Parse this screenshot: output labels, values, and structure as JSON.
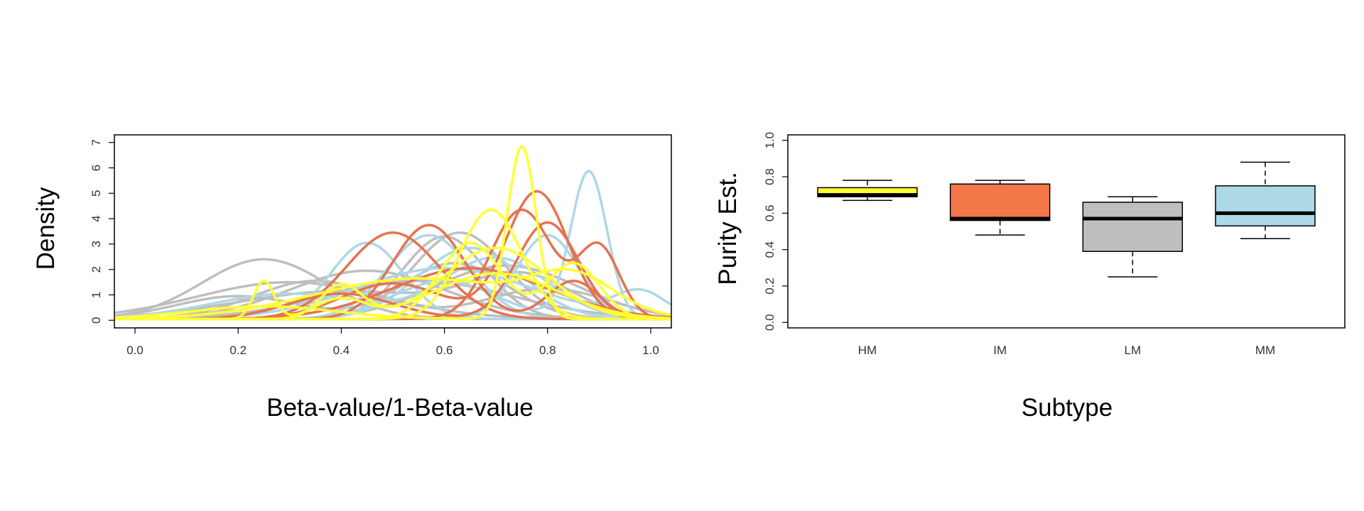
{
  "chart_data": [
    {
      "type": "line",
      "title": "",
      "xlabel": "Beta-value/1-Beta-value",
      "ylabel": "Density",
      "xlim": [
        -0.04,
        1.04
      ],
      "ylim": [
        -0.3,
        7.3
      ],
      "xticks": [
        "0.0",
        "0.2",
        "0.4",
        "0.6",
        "0.8",
        "1.0"
      ],
      "yticks": [
        "0",
        "1",
        "2",
        "3",
        "4",
        "5",
        "6",
        "7"
      ],
      "grid": false,
      "legend": "none",
      "colors": {
        "HM": "#ffff33",
        "IM": "#e5734f",
        "LM": "#bebebe",
        "MM": "#add8e6"
      },
      "series": [
        {
          "group": "LM",
          "peaks": [
            [
              0.25,
              2.35,
              0.12
            ]
          ],
          "base": 0.05
        },
        {
          "group": "LM",
          "peaks": [
            [
              0.3,
              1.45,
              0.18
            ]
          ],
          "base": 0.05
        },
        {
          "group": "LM",
          "peaks": [
            [
              0.2,
              0.9,
              0.12
            ],
            [
              0.62,
              2.2,
              0.1
            ]
          ],
          "base": 0.05
        },
        {
          "group": "LM",
          "peaks": [
            [
              0.6,
              3.25,
              0.08
            ]
          ],
          "base": 0.05
        },
        {
          "group": "LM",
          "peaks": [
            [
              0.45,
              1.9,
              0.15
            ]
          ],
          "base": 0.05
        },
        {
          "group": "LM",
          "peaks": [
            [
              0.4,
              1.1,
              0.2
            ],
            [
              0.75,
              1.6,
              0.1
            ]
          ],
          "base": 0.05
        },
        {
          "group": "LM",
          "peaks": [
            [
              0.63,
              3.4,
              0.09
            ]
          ],
          "base": 0.05
        },
        {
          "group": "LM",
          "peaks": [
            [
              0.55,
              1.5,
              0.18
            ]
          ],
          "base": 0.05
        },
        {
          "group": "LM",
          "peaks": [
            [
              0.72,
              2.1,
              0.14
            ]
          ],
          "base": 0.05
        },
        {
          "group": "LM",
          "peaks": [
            [
              0.35,
              1.5,
              0.12
            ],
            [
              0.8,
              1.2,
              0.12
            ]
          ],
          "base": 0.05
        },
        {
          "group": "MM",
          "peaks": [
            [
              0.88,
              5.8,
              0.035
            ],
            [
              0.6,
              1.5,
              0.1
            ]
          ],
          "base": 0.05
        },
        {
          "group": "MM",
          "peaks": [
            [
              0.45,
              3.0,
              0.07
            ]
          ],
          "base": 0.05
        },
        {
          "group": "MM",
          "peaks": [
            [
              0.57,
              3.3,
              0.08
            ]
          ],
          "base": 0.05
        },
        {
          "group": "MM",
          "peaks": [
            [
              0.65,
              2.8,
              0.1
            ]
          ],
          "base": 0.05
        },
        {
          "group": "MM",
          "peaks": [
            [
              0.3,
              1.0,
              0.15
            ],
            [
              0.7,
              2.4,
              0.1
            ]
          ],
          "base": 0.05
        },
        {
          "group": "MM",
          "peaks": [
            [
              0.8,
              3.3,
              0.06
            ]
          ],
          "base": 0.05
        },
        {
          "group": "MM",
          "peaks": [
            [
              0.6,
              2.0,
              0.17
            ],
            [
              0.98,
              1.0,
              0.05
            ]
          ],
          "base": 0.05
        },
        {
          "group": "IM",
          "peaks": [
            [
              0.5,
              3.4,
              0.09
            ]
          ],
          "base": 0.05
        },
        {
          "group": "IM",
          "peaks": [
            [
              0.57,
              3.7,
              0.07
            ],
            [
              0.85,
              1.5,
              0.05
            ]
          ],
          "base": 0.05
        },
        {
          "group": "IM",
          "peaks": [
            [
              0.78,
              5.0,
              0.06
            ],
            [
              0.5,
              1.4,
              0.1
            ]
          ],
          "base": 0.05
        },
        {
          "group": "IM",
          "peaks": [
            [
              0.75,
              4.3,
              0.06
            ],
            [
              0.9,
              2.8,
              0.04
            ]
          ],
          "base": 0.05
        },
        {
          "group": "IM",
          "peaks": [
            [
              0.65,
              2.0,
              0.15
            ]
          ],
          "base": 0.05
        },
        {
          "group": "IM",
          "peaks": [
            [
              0.4,
              1.0,
              0.1
            ],
            [
              0.8,
              3.8,
              0.06
            ]
          ],
          "base": 0.05
        },
        {
          "group": "HM",
          "peaks": [
            [
              0.75,
              6.8,
              0.028
            ],
            [
              0.25,
              0.5,
              0.14
            ]
          ],
          "base": 0.05
        },
        {
          "group": "HM",
          "peaks": [
            [
              0.69,
              4.3,
              0.06
            ]
          ],
          "base": 0.05
        },
        {
          "group": "HM",
          "peaks": [
            [
              0.25,
              1.5,
              0.02
            ],
            [
              0.4,
              0.8,
              0.05
            ],
            [
              0.7,
              2.8,
              0.1
            ]
          ],
          "base": 0.05
        },
        {
          "group": "HM",
          "peaks": [
            [
              0.65,
              3.0,
              0.06
            ],
            [
              0.85,
              2.2,
              0.05
            ]
          ],
          "base": 0.05
        },
        {
          "group": "HM",
          "peaks": [
            [
              0.55,
              1.6,
              0.2
            ],
            [
              0.85,
              1.4,
              0.08
            ]
          ],
          "base": 0.05
        },
        {
          "group": "HM",
          "peaks": [
            [
              0.4,
              1.3,
              0.04
            ],
            [
              0.7,
              1.8,
              0.12
            ]
          ],
          "base": 0.05
        }
      ]
    },
    {
      "type": "box",
      "title": "",
      "xlabel": "Subtype",
      "ylabel": "Purity Est.",
      "ylim": [
        -0.03,
        1.03
      ],
      "yticks": [
        "0.0",
        "0.2",
        "0.4",
        "0.6",
        "0.8",
        "1.0"
      ],
      "categories": [
        "HM",
        "IM",
        "LM",
        "MM"
      ],
      "grid": false,
      "legend": "none",
      "boxes": [
        {
          "name": "HM",
          "min": 0.67,
          "q1": 0.69,
          "median": 0.7,
          "q3": 0.74,
          "max": 0.78,
          "color": "#ffff33"
        },
        {
          "name": "IM",
          "min": 0.48,
          "q1": 0.56,
          "median": 0.57,
          "q3": 0.76,
          "max": 0.78,
          "color": "#f4774a"
        },
        {
          "name": "LM",
          "min": 0.25,
          "q1": 0.39,
          "median": 0.57,
          "q3": 0.66,
          "max": 0.69,
          "color": "#bebebe"
        },
        {
          "name": "MM",
          "min": 0.46,
          "q1": 0.53,
          "median": 0.6,
          "q3": 0.75,
          "max": 0.88,
          "color": "#add8e6"
        }
      ]
    }
  ]
}
